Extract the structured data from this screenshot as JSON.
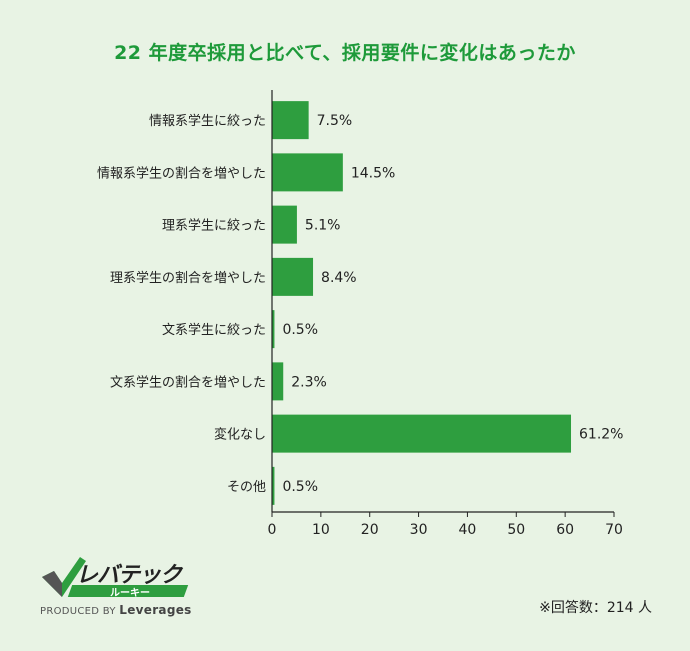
{
  "chart_data": {
    "type": "bar",
    "orientation": "horizontal",
    "title": "22 年度卒採用と比べて、採用要件に変化はあったか",
    "categories": [
      "情報系学生に絞った",
      "情報系学生の割合を増やした",
      "理系学生に絞った",
      "理系学生の割合を増やした",
      "文系学生に絞った",
      "文系学生の割合を増やした",
      "変化なし",
      "その他"
    ],
    "values": [
      7.5,
      14.5,
      5.1,
      8.4,
      0.5,
      2.3,
      61.2,
      0.5
    ],
    "value_labels": [
      "7.5%",
      "14.5%",
      "5.1%",
      "8.4%",
      "0.5%",
      "2.3%",
      "61.2%",
      "0.5%"
    ],
    "xlim": [
      0,
      70
    ],
    "xticks": [
      0,
      10,
      20,
      30,
      40,
      50,
      60,
      70
    ],
    "grid": false,
    "bar_color": "#2e9e3f"
  },
  "logo": {
    "brand": "レバテック",
    "sub": "ルーキー",
    "produced_by": "PRODUCED BY",
    "company": "Leverages"
  },
  "footnote": "※回答数：214 人",
  "colors": {
    "background": "#e8f3e4",
    "title": "#1e9a3a",
    "bar": "#2e9e3f"
  }
}
